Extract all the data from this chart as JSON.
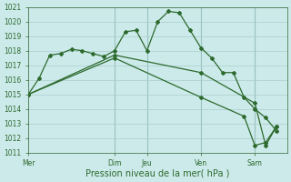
{
  "bg_color": "#cceaea",
  "grid_color": "#b0d8d8",
  "line_color": "#2d6a2d",
  "marker_color": "#2d6a2d",
  "title": "Pression niveau de la mer( hPa )",
  "ylim": [
    1011,
    1021
  ],
  "xlim": [
    0,
    24
  ],
  "yticks": [
    1011,
    1012,
    1013,
    1014,
    1015,
    1016,
    1017,
    1018,
    1019,
    1020,
    1021
  ],
  "day_labels": [
    "Mer",
    "Dim",
    "Jeu",
    "Ven",
    "Sam"
  ],
  "day_positions": [
    0,
    8,
    11,
    16,
    21
  ],
  "vline_positions": [
    8,
    11,
    16,
    21
  ],
  "series1_x": [
    0,
    1,
    2,
    3,
    4,
    5,
    6,
    7,
    8,
    9,
    10,
    11,
    12,
    13,
    14,
    15,
    16,
    17,
    18,
    19,
    20,
    21,
    22,
    23
  ],
  "series1_y": [
    1015.0,
    1016.1,
    1017.7,
    1017.8,
    1018.1,
    1018.0,
    1017.8,
    1017.6,
    1018.0,
    1019.3,
    1019.4,
    1018.0,
    1020.0,
    1020.7,
    1020.6,
    1019.4,
    1018.2,
    1017.5,
    1016.5,
    1016.5,
    1014.8,
    1014.0,
    1013.4,
    1012.5
  ],
  "series2_x": [
    0,
    8,
    16,
    21,
    22,
    23
  ],
  "series2_y": [
    1015.0,
    1017.7,
    1016.5,
    1014.4,
    1011.5,
    1012.8
  ],
  "series3_x": [
    0,
    8,
    16,
    20,
    21,
    22,
    23
  ],
  "series3_y": [
    1015.0,
    1017.5,
    1014.8,
    1013.5,
    1011.5,
    1011.7,
    1012.8
  ],
  "title_fontsize": 7,
  "tick_fontsize": 5.5
}
